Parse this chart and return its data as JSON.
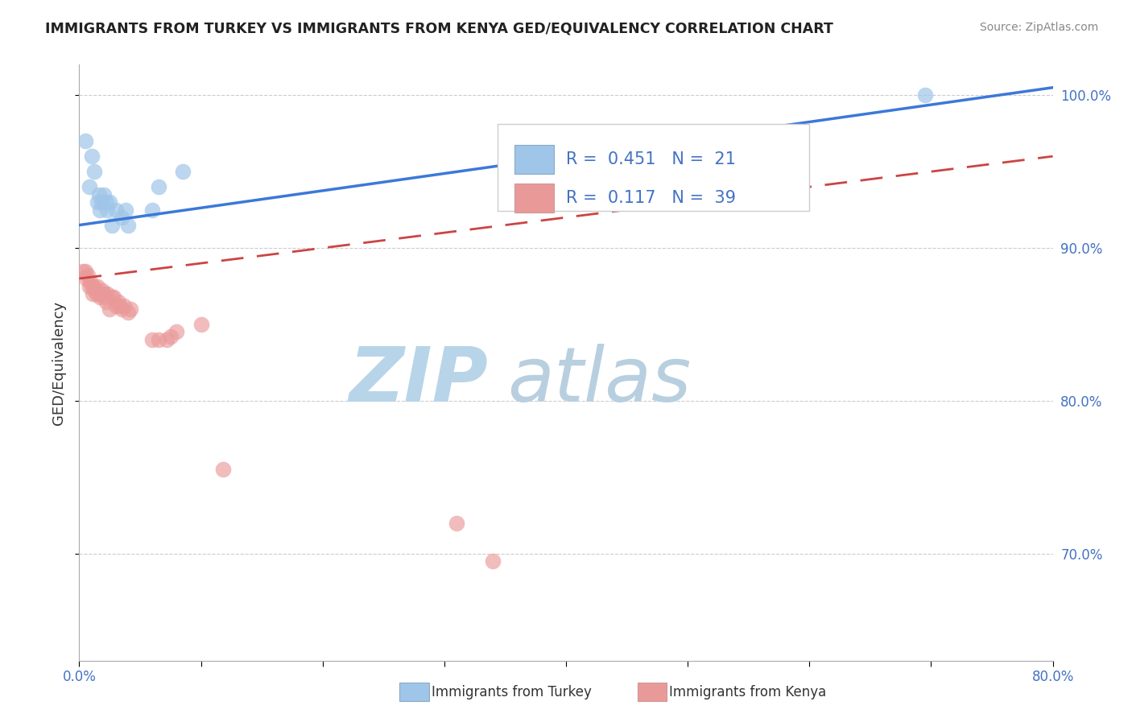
{
  "title": "IMMIGRANTS FROM TURKEY VS IMMIGRANTS FROM KENYA GED/EQUIVALENCY CORRELATION CHART",
  "source": "Source: ZipAtlas.com",
  "ylabel": "GED/Equivalency",
  "legend1_label": "Immigrants from Turkey",
  "legend2_label": "Immigrants from Kenya",
  "R1": 0.451,
  "N1": 21,
  "R2": 0.117,
  "N2": 39,
  "xlim": [
    0.0,
    0.8
  ],
  "ylim": [
    0.63,
    1.02
  ],
  "xticks": [
    0.0,
    0.1,
    0.2,
    0.3,
    0.4,
    0.5,
    0.6,
    0.7,
    0.8
  ],
  "xticklabels": [
    "0.0%",
    "",
    "",
    "",
    "",
    "",
    "",
    "",
    "80.0%"
  ],
  "ytick_vals": [
    0.7,
    0.8,
    0.9,
    1.0
  ],
  "ytick_labels": [
    "70.0%",
    "80.0%",
    "90.0%",
    "100.0%"
  ],
  "color_turkey": "#9fc5e8",
  "color_kenya": "#ea9999",
  "trendline_turkey_color": "#3c78d8",
  "trendline_kenya_color": "#cc4444",
  "background_color": "#ffffff",
  "title_color": "#222222",
  "source_color": "#888888",
  "watermark_zip": "ZIP",
  "watermark_atlas": "atlas",
  "watermark_color_zip": "#b8d4e8",
  "watermark_color_atlas": "#b8cfe0",
  "turkey_trendline": [
    [
      0.0,
      0.915
    ],
    [
      0.8,
      1.005
    ]
  ],
  "kenya_trendline": [
    [
      0.0,
      0.88
    ],
    [
      0.8,
      0.96
    ]
  ],
  "turkey_x": [
    0.005,
    0.008,
    0.01,
    0.012,
    0.015,
    0.016,
    0.017,
    0.018,
    0.02,
    0.022,
    0.023,
    0.025,
    0.027,
    0.03,
    0.035,
    0.038,
    0.04,
    0.06,
    0.065,
    0.085,
    0.695
  ],
  "turkey_y": [
    0.97,
    0.94,
    0.96,
    0.95,
    0.93,
    0.935,
    0.925,
    0.93,
    0.935,
    0.93,
    0.925,
    0.93,
    0.915,
    0.925,
    0.92,
    0.925,
    0.915,
    0.925,
    0.94,
    0.95,
    1.0
  ],
  "kenya_x": [
    0.003,
    0.005,
    0.006,
    0.007,
    0.008,
    0.009,
    0.01,
    0.011,
    0.012,
    0.013,
    0.014,
    0.015,
    0.016,
    0.017,
    0.018,
    0.019,
    0.02,
    0.021,
    0.022,
    0.023,
    0.025,
    0.027,
    0.028,
    0.03,
    0.032,
    0.033,
    0.035,
    0.037,
    0.04,
    0.042,
    0.06,
    0.065,
    0.072,
    0.075,
    0.08,
    0.1,
    0.118,
    0.31,
    0.34
  ],
  "kenya_y": [
    0.885,
    0.885,
    0.88,
    0.882,
    0.875,
    0.878,
    0.875,
    0.87,
    0.875,
    0.872,
    0.87,
    0.875,
    0.87,
    0.868,
    0.87,
    0.872,
    0.868,
    0.87,
    0.865,
    0.87,
    0.86,
    0.868,
    0.868,
    0.862,
    0.865,
    0.862,
    0.86,
    0.862,
    0.858,
    0.86,
    0.84,
    0.84,
    0.84,
    0.842,
    0.845,
    0.85,
    0.755,
    0.72,
    0.695
  ],
  "grid_color": "#cccccc",
  "legend_fontsize": 16,
  "axis_label_fontsize": 13,
  "tick_fontsize": 12
}
